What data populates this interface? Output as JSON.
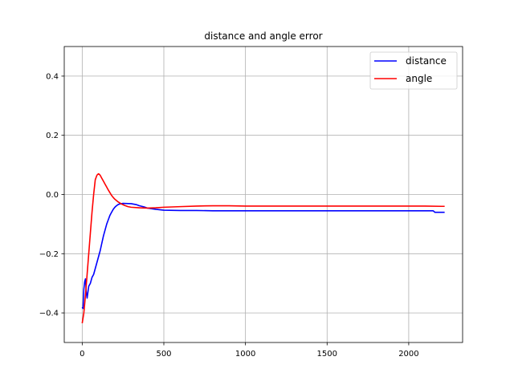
{
  "chart_data": {
    "type": "line",
    "title": "distance and angle error",
    "xlabel": "",
    "ylabel": "",
    "xlim": [
      -110,
      2330
    ],
    "ylim": [
      -0.5,
      0.5
    ],
    "xticks": [
      0,
      500,
      1000,
      1500,
      2000
    ],
    "xtick_labels": [
      "0",
      "500",
      "1000",
      "1500",
      "2000"
    ],
    "yticks": [
      -0.4,
      -0.2,
      0.0,
      0.2,
      0.4
    ],
    "ytick_labels": [
      "−0.4",
      "−0.2",
      "0.0",
      "0.2",
      "0.4"
    ],
    "grid": true,
    "legend_position": "top-right",
    "series": [
      {
        "name": "distance",
        "color": "#0000ff",
        "x": [
          0,
          5,
          10,
          15,
          20,
          25,
          30,
          40,
          50,
          60,
          70,
          80,
          90,
          100,
          110,
          120,
          130,
          140,
          150,
          160,
          170,
          180,
          190,
          200,
          210,
          220,
          230,
          240,
          250,
          300,
          330,
          350,
          380,
          400,
          450,
          500,
          600,
          700,
          800,
          900,
          1000,
          1100,
          1200,
          1300,
          1400,
          1500,
          1600,
          1700,
          1800,
          1900,
          2000,
          2100,
          2150,
          2160,
          2220
        ],
        "y": [
          -0.38,
          -0.385,
          -0.32,
          -0.295,
          -0.285,
          -0.33,
          -0.35,
          -0.31,
          -0.3,
          -0.28,
          -0.27,
          -0.25,
          -0.23,
          -0.21,
          -0.19,
          -0.165,
          -0.14,
          -0.12,
          -0.1,
          -0.085,
          -0.07,
          -0.06,
          -0.05,
          -0.043,
          -0.038,
          -0.034,
          -0.032,
          -0.031,
          -0.03,
          -0.031,
          -0.034,
          -0.038,
          -0.042,
          -0.046,
          -0.05,
          -0.053,
          -0.054,
          -0.054,
          -0.055,
          -0.055,
          -0.055,
          -0.055,
          -0.055,
          -0.055,
          -0.055,
          -0.055,
          -0.055,
          -0.055,
          -0.055,
          -0.055,
          -0.055,
          -0.055,
          -0.055,
          -0.06,
          -0.06
        ]
      },
      {
        "name": "angle",
        "color": "#ff0000",
        "x": [
          0,
          10,
          20,
          30,
          40,
          50,
          60,
          70,
          80,
          90,
          95,
          100,
          105,
          110,
          120,
          130,
          140,
          150,
          160,
          170,
          180,
          190,
          200,
          220,
          240,
          260,
          280,
          300,
          350,
          400,
          450,
          500,
          600,
          700,
          800,
          900,
          1000,
          1100,
          1200,
          1300,
          1400,
          1500,
          1600,
          1700,
          1800,
          1900,
          2000,
          2100,
          2200,
          2220
        ],
        "y": [
          -0.435,
          -0.4,
          -0.34,
          -0.27,
          -0.2,
          -0.13,
          -0.06,
          0.0,
          0.05,
          0.065,
          0.068,
          0.07,
          0.068,
          0.065,
          0.055,
          0.045,
          0.035,
          0.025,
          0.015,
          0.006,
          -0.003,
          -0.01,
          -0.016,
          -0.025,
          -0.032,
          -0.037,
          -0.041,
          -0.043,
          -0.045,
          -0.046,
          -0.045,
          -0.043,
          -0.041,
          -0.039,
          -0.038,
          -0.038,
          -0.039,
          -0.039,
          -0.039,
          -0.039,
          -0.039,
          -0.039,
          -0.039,
          -0.039,
          -0.039,
          -0.039,
          -0.039,
          -0.039,
          -0.04,
          -0.04
        ]
      }
    ]
  }
}
